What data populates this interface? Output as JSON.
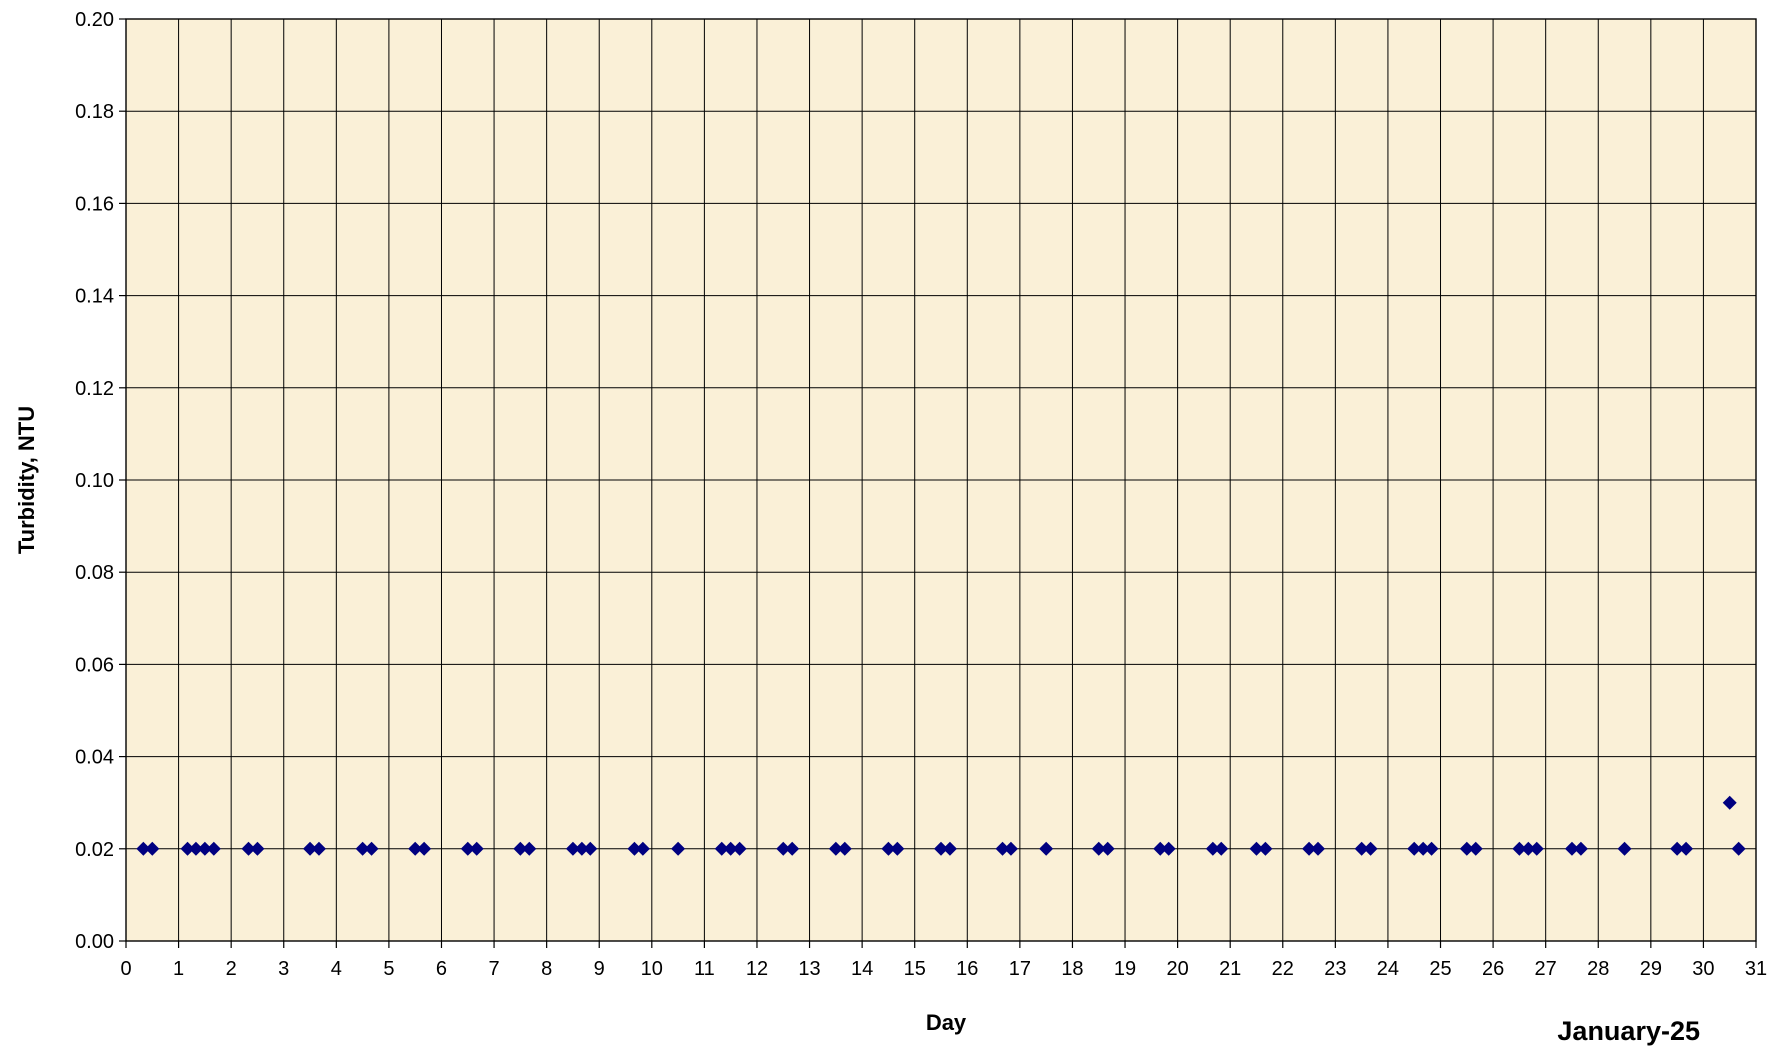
{
  "chart_data": {
    "type": "scatter",
    "xlabel": "Day",
    "ylabel": "Turbidity, NTU",
    "annotation": "January-25",
    "xlim": [
      0,
      31
    ],
    "ylim": [
      0,
      0.2
    ],
    "x_ticks": [
      "0",
      "1",
      "2",
      "3",
      "4",
      "5",
      "6",
      "7",
      "8",
      "9",
      "10",
      "11",
      "12",
      "13",
      "14",
      "15",
      "16",
      "17",
      "18",
      "19",
      "20",
      "21",
      "22",
      "23",
      "24",
      "25",
      "26",
      "27",
      "28",
      "29",
      "30",
      "31"
    ],
    "y_ticks": [
      "0.00",
      "0.02",
      "0.04",
      "0.06",
      "0.08",
      "0.10",
      "0.12",
      "0.14",
      "0.16",
      "0.18",
      "0.20"
    ],
    "grid": true,
    "plot_background": "#FAF0D7",
    "marker_color": "#000080",
    "marker": "diamond",
    "series": [
      {
        "x": [
          0.33,
          0.5,
          1.17,
          1.33,
          1.5,
          1.67,
          2.33,
          2.5,
          3.5,
          3.67,
          4.5,
          4.67,
          5.5,
          5.67,
          6.5,
          6.67,
          7.5,
          7.67,
          8.5,
          8.67,
          8.83,
          9.67,
          9.83,
          10.5,
          11.33,
          11.5,
          11.67,
          12.5,
          12.67,
          13.5,
          13.67,
          14.5,
          14.67,
          15.5,
          15.67,
          16.67,
          16.83,
          17.5,
          18.5,
          18.67,
          19.67,
          19.83,
          20.67,
          20.83,
          21.5,
          21.67,
          22.5,
          22.67,
          23.5,
          23.67,
          24.5,
          24.67,
          24.83,
          25.5,
          25.67,
          26.5,
          26.67,
          26.83,
          27.5,
          27.67,
          28.5,
          29.5,
          29.67,
          30.5,
          30.67
        ],
        "y": [
          0.02,
          0.02,
          0.02,
          0.02,
          0.02,
          0.02,
          0.02,
          0.02,
          0.02,
          0.02,
          0.02,
          0.02,
          0.02,
          0.02,
          0.02,
          0.02,
          0.02,
          0.02,
          0.02,
          0.02,
          0.02,
          0.02,
          0.02,
          0.02,
          0.02,
          0.02,
          0.02,
          0.02,
          0.02,
          0.02,
          0.02,
          0.02,
          0.02,
          0.02,
          0.02,
          0.02,
          0.02,
          0.02,
          0.02,
          0.02,
          0.02,
          0.02,
          0.02,
          0.02,
          0.02,
          0.02,
          0.02,
          0.02,
          0.02,
          0.02,
          0.02,
          0.02,
          0.02,
          0.02,
          0.02,
          0.02,
          0.02,
          0.02,
          0.02,
          0.02,
          0.02,
          0.02,
          0.02,
          0.03,
          0.02
        ]
      }
    ]
  }
}
